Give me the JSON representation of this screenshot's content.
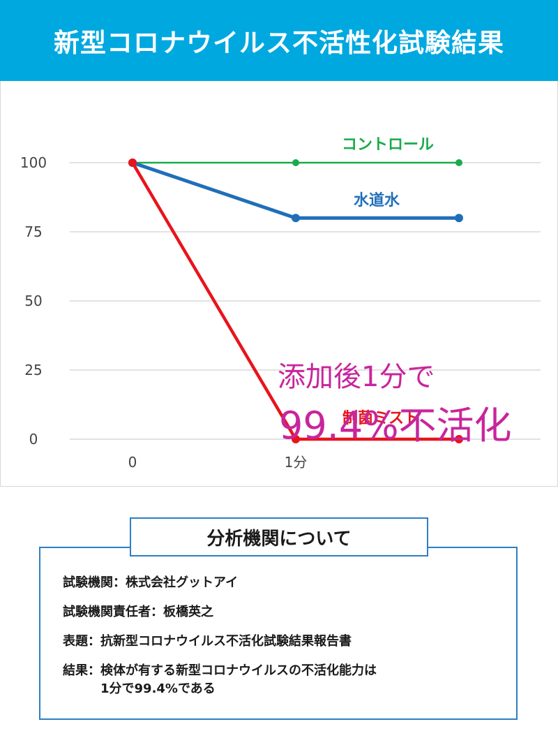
{
  "header": {
    "title": "新型コロナウイルス不活性化試験結果"
  },
  "chart_data": {
    "type": "line",
    "title": "",
    "xlabel": "",
    "ylabel": "",
    "ylim": [
      0,
      100
    ],
    "yticks": [
      "0",
      "25",
      "50",
      "75",
      "100"
    ],
    "x_tick_labels": [
      "0",
      "1分",
      ""
    ],
    "grid": true,
    "series": [
      {
        "name": "コントロール",
        "color": "#1aab4a",
        "values": [
          100,
          100,
          100
        ]
      },
      {
        "name": "水道水",
        "color": "#1f6fb8",
        "values": [
          100,
          80,
          80
        ]
      },
      {
        "name": "制菌ミスト",
        "color": "#e8141c",
        "values": [
          100,
          0,
          0
        ]
      }
    ],
    "annotation": {
      "line1": "添加後1分で",
      "line2": "99.4%不活化",
      "color": "#c8259c"
    }
  },
  "info": {
    "heading": "分析機関について",
    "rows": [
      {
        "key": "試験機関：",
        "value": "株式会社グットアイ"
      },
      {
        "key": "試験機関責任者：",
        "value": "板橋英之"
      },
      {
        "key": "表題：",
        "value": "抗新型コロナウイルス不活化試験結果報告書"
      },
      {
        "key": "結果：",
        "value": "検体が有する新型コロナウイルスの不活化能力は\n1分で99.4%である"
      }
    ]
  }
}
